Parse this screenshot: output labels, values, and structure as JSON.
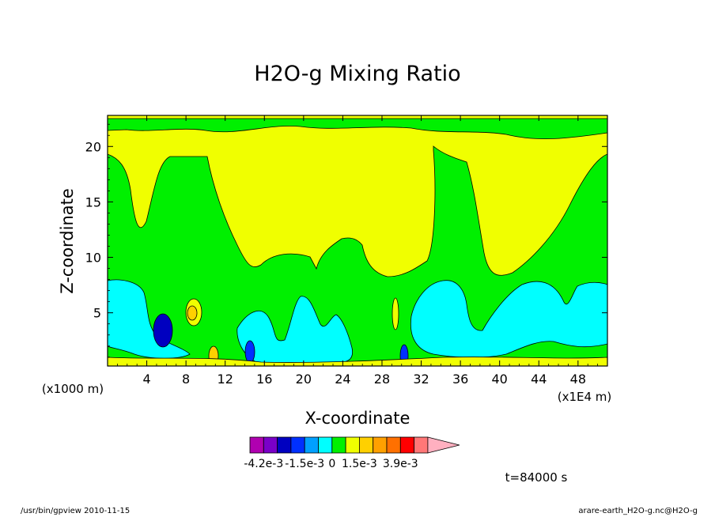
{
  "chart_data": {
    "type": "heatmap",
    "title": "H2O-g Mixing Ratio",
    "xlabel": "X-coordinate",
    "ylabel": "Z-coordinate",
    "x_unit_note": "(x1000 m)",
    "x_scale_note": "(x1E4 m)",
    "x_ticks": [
      4,
      8,
      12,
      16,
      20,
      24,
      28,
      32,
      36,
      40,
      44,
      48
    ],
    "y_ticks": [
      5,
      10,
      15,
      20
    ],
    "xlim": [
      0,
      51
    ],
    "ylim": [
      0.2,
      22.8
    ],
    "colorbar": {
      "colors": [
        "#b000b0",
        "#7a00c8",
        "#0000c0",
        "#0030ff",
        "#00a0ff",
        "#00ffff",
        "#00f000",
        "#f0ff00",
        "#ffd000",
        "#ffa000",
        "#ff7000",
        "#ff0000",
        "#ff7777",
        "#ffb0c0"
      ],
      "tick_labels": [
        "-4.2e-3",
        "-1.5e-3",
        "0",
        "1.5e-3",
        "3.9e-3"
      ],
      "tick_boundaries": [
        1,
        4,
        6,
        8,
        11
      ]
    },
    "time_label": "t=84000 s"
  },
  "footer": {
    "left": "/usr/bin/gpview   2010-11-15",
    "right": "arare-earth_H2O-g.nc@H2O-g"
  }
}
